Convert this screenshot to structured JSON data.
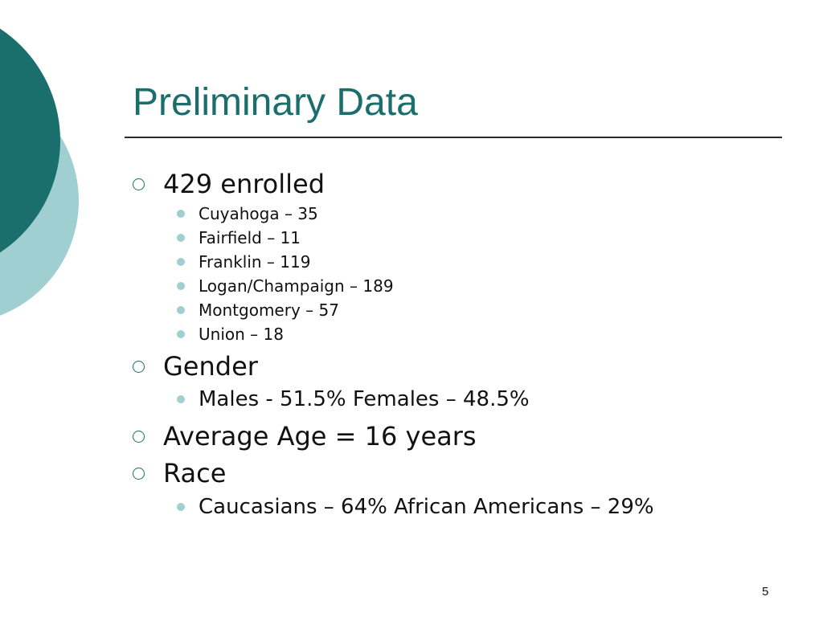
{
  "slide": {
    "title": "Preliminary Data",
    "page_number": "5",
    "colors": {
      "accent": "#1a6e6b",
      "light_accent": "#9fcfd0",
      "text": "#111111"
    },
    "bullets": [
      {
        "text": "429 enrolled",
        "sub": [
          "Cuyahoga – 35",
          "Fairfield – 11",
          "Franklin – 119",
          "Logan/Champaign – 189",
          "Montgomery – 57",
          "Union – 18"
        ]
      },
      {
        "text": "Gender",
        "sub": [
          "Males - 51.5%  Females – 48.5%"
        ]
      },
      {
        "text": "Average Age = 16 years",
        "sub": []
      },
      {
        "text": "Race",
        "sub": [
          "Caucasians – 64%  African Americans – 29%"
        ]
      }
    ]
  }
}
